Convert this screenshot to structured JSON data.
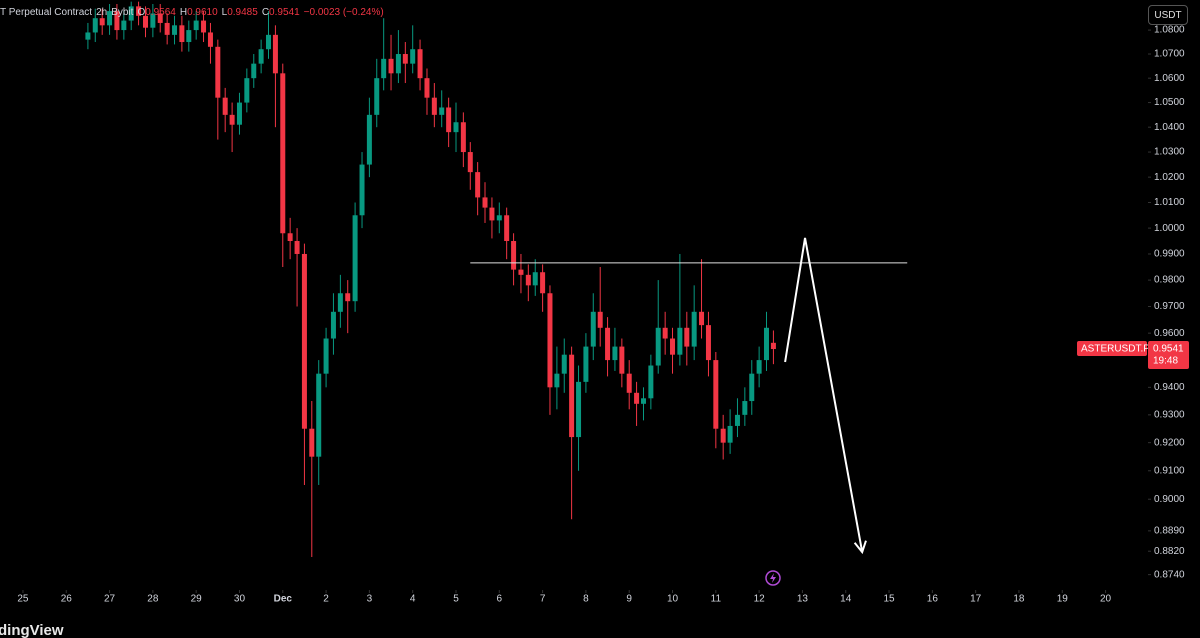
{
  "chart_data": {
    "type": "candlestick",
    "header": {
      "description": "T Perpetual Contract",
      "interval": "2h",
      "exchange": "Bybit",
      "open_label": "O",
      "open": "0.9564",
      "high_label": "H",
      "high": "0.9610",
      "low_label": "L",
      "low": "0.9485",
      "close_label": "C",
      "close": "0.9541",
      "change": "−0.0023 (−0.24%)"
    },
    "currency": "USDT",
    "watermark": "dingView",
    "log_scale": true,
    "up_color": "#089981",
    "down_color": "#f23645",
    "xlim": [
      -0.53,
      25.98
    ],
    "ylim": [
      0.8688,
      1.0927
    ],
    "xticks": [
      {
        "value": 0,
        "label": "25"
      },
      {
        "value": 1,
        "label": "26"
      },
      {
        "value": 2,
        "label": "27"
      },
      {
        "value": 3,
        "label": "28"
      },
      {
        "value": 4,
        "label": "29"
      },
      {
        "value": 5,
        "label": "30"
      },
      {
        "value": 6,
        "label": "Dec"
      },
      {
        "value": 7,
        "label": "2"
      },
      {
        "value": 8,
        "label": "3"
      },
      {
        "value": 9,
        "label": "4"
      },
      {
        "value": 10,
        "label": "5"
      },
      {
        "value": 11,
        "label": "6"
      },
      {
        "value": 12,
        "label": "7"
      },
      {
        "value": 13,
        "label": "8"
      },
      {
        "value": 14,
        "label": "9"
      },
      {
        "value": 15,
        "label": "10"
      },
      {
        "value": 16,
        "label": "11"
      },
      {
        "value": 17,
        "label": "12"
      },
      {
        "value": 18,
        "label": "13"
      },
      {
        "value": 19,
        "label": "14"
      },
      {
        "value": 20,
        "label": "15"
      },
      {
        "value": 21,
        "label": "16"
      },
      {
        "value": 22,
        "label": "17"
      },
      {
        "value": 23,
        "label": "18"
      },
      {
        "value": 24,
        "label": "19"
      },
      {
        "value": 25,
        "label": "20"
      }
    ],
    "yticks": [
      {
        "value": 1.08,
        "label": "1.0800"
      },
      {
        "value": 1.07,
        "label": "1.0700"
      },
      {
        "value": 1.06,
        "label": "1.0600"
      },
      {
        "value": 1.05,
        "label": "1.0500"
      },
      {
        "value": 1.04,
        "label": "1.0400"
      },
      {
        "value": 1.03,
        "label": "1.0300"
      },
      {
        "value": 1.02,
        "label": "1.0200"
      },
      {
        "value": 1.01,
        "label": "1.0100"
      },
      {
        "value": 1,
        "label": "1.0000"
      },
      {
        "value": 0.99,
        "label": "0.9900"
      },
      {
        "value": 0.98,
        "label": "0.9800"
      },
      {
        "value": 0.97,
        "label": "0.9700"
      },
      {
        "value": 0.96,
        "label": "0.9600"
      },
      {
        "value": 0.94,
        "label": "0.9400"
      },
      {
        "value": 0.93,
        "label": "0.9300"
      },
      {
        "value": 0.92,
        "label": "0.9200"
      },
      {
        "value": 0.91,
        "label": "0.9100"
      },
      {
        "value": 0.9,
        "label": "0.9000"
      },
      {
        "value": 0.889,
        "label": "0.8890"
      },
      {
        "value": 0.882,
        "label": "0.8820"
      },
      {
        "value": 0.874,
        "label": "0.8740"
      }
    ],
    "x": [
      1.5,
      1.67,
      1.83,
      2,
      2.17,
      2.33,
      2.5,
      2.67,
      2.83,
      3,
      3.17,
      3.33,
      3.5,
      3.67,
      3.83,
      4,
      4.17,
      4.33,
      4.5,
      4.67,
      4.83,
      5,
      5.17,
      5.33,
      5.5,
      5.67,
      5.83,
      6,
      6.17,
      6.33,
      6.5,
      6.67,
      6.83,
      7,
      7.17,
      7.33,
      7.5,
      7.67,
      7.83,
      8,
      8.17,
      8.33,
      8.5,
      8.67,
      8.83,
      9,
      9.17,
      9.33,
      9.5,
      9.67,
      9.83,
      10,
      10.17,
      10.33,
      10.5,
      10.67,
      10.83,
      11,
      11.17,
      11.33,
      11.5,
      11.67,
      11.83,
      12,
      12.17,
      12.33,
      12.5,
      12.67,
      12.83,
      13,
      13.17,
      13.33,
      13.5,
      13.67,
      13.83,
      14,
      14.17,
      14.33,
      14.5,
      14.67,
      14.83,
      15,
      15.17,
      15.33,
      15.5,
      15.67,
      15.83,
      16,
      16.17,
      16.33,
      16.5,
      16.67,
      16.83,
      17,
      17.17,
      17.33
    ],
    "open": [
      1.076,
      1.079,
      1.085,
      1.082,
      1.088,
      1.08,
      1.084,
      1.09,
      1.086,
      1.081,
      1.087,
      1.083,
      1.078,
      1.082,
      1.075,
      1.08,
      1.084,
      1.079,
      1.073,
      1.052,
      1.045,
      1.041,
      1.05,
      1.06,
      1.066,
      1.072,
      1.078,
      1.062,
      0.998,
      0.995,
      0.99,
      0.925,
      0.915,
      0.945,
      0.958,
      0.968,
      0.975,
      0.972,
      1.005,
      1.025,
      1.045,
      1.06,
      1.068,
      1.062,
      1.07,
      1.066,
      1.072,
      1.06,
      1.052,
      1.045,
      1.048,
      1.038,
      1.042,
      1.03,
      1.022,
      1.012,
      1.008,
      1.003,
      1.005,
      0.995,
      0.984,
      0.982,
      0.978,
      0.983,
      0.975,
      0.94,
      0.945,
      0.952,
      0.922,
      0.942,
      0.955,
      0.968,
      0.962,
      0.95,
      0.955,
      0.945,
      0.938,
      0.934,
      0.936,
      0.948,
      0.962,
      0.958,
      0.952,
      0.962,
      0.955,
      0.968,
      0.963,
      0.95,
      0.925,
      0.92,
      0.926,
      0.93,
      0.935,
      0.945,
      0.95,
      0.9564
    ],
    "high": [
      1.083,
      1.089,
      1.089,
      1.091,
      1.091,
      1.088,
      1.092,
      1.092,
      1.09,
      1.091,
      1.091,
      1.087,
      1.086,
      1.086,
      1.084,
      1.088,
      1.088,
      1.083,
      1.076,
      1.056,
      1.05,
      1.054,
      1.064,
      1.07,
      1.076,
      1.088,
      1.082,
      1.066,
      1.004,
      1.0,
      0.994,
      0.935,
      0.95,
      0.962,
      0.975,
      0.982,
      0.98,
      1.01,
      1.03,
      1.052,
      1.068,
      1.085,
      1.078,
      1.08,
      1.075,
      1.082,
      1.076,
      1.064,
      1.058,
      1.055,
      1.052,
      1.05,
      1.046,
      1.034,
      1.026,
      1.018,
      1.012,
      1.01,
      1.008,
      0.998,
      0.99,
      0.986,
      0.988,
      0.986,
      0.978,
      0.955,
      0.958,
      0.955,
      0.948,
      0.96,
      0.975,
      0.985,
      0.966,
      0.962,
      0.958,
      0.95,
      0.942,
      0.94,
      0.952,
      0.98,
      0.968,
      0.962,
      0.99,
      0.968,
      0.978,
      0.988,
      0.968,
      0.953,
      0.93,
      0.932,
      0.936,
      0.94,
      0.95,
      0.955,
      0.968,
      0.961
    ],
    "low": [
      1.072,
      1.075,
      1.078,
      1.078,
      1.076,
      1.076,
      1.08,
      1.082,
      1.077,
      1.077,
      1.079,
      1.074,
      1.074,
      1.071,
      1.071,
      1.076,
      1.075,
      1.066,
      1.035,
      1.038,
      1.03,
      1.037,
      1.046,
      1.056,
      1.062,
      1.068,
      1.04,
      0.985,
      0.988,
      0.97,
      0.905,
      0.88,
      0.905,
      0.94,
      0.952,
      0.962,
      0.96,
      0.968,
      1.0,
      1.02,
      1.04,
      1.055,
      1.055,
      1.058,
      1.058,
      1.062,
      1.055,
      1.045,
      1.04,
      1.04,
      1.032,
      1.03,
      1.024,
      1.015,
      1.005,
      1.002,
      0.996,
      0.998,
      0.988,
      0.978,
      0.975,
      0.972,
      0.974,
      0.968,
      0.93,
      0.932,
      0.938,
      0.893,
      0.91,
      0.938,
      0.95,
      0.955,
      0.944,
      0.946,
      0.94,
      0.932,
      0.926,
      0.928,
      0.932,
      0.945,
      0.952,
      0.945,
      0.948,
      0.948,
      0.95,
      0.958,
      0.944,
      0.918,
      0.914,
      0.916,
      0.922,
      0.926,
      0.93,
      0.94,
      0.946,
      0.9485
    ],
    "close": [
      1.079,
      1.085,
      1.082,
      1.088,
      1.08,
      1.084,
      1.09,
      1.086,
      1.081,
      1.087,
      1.083,
      1.078,
      1.082,
      1.075,
      1.08,
      1.084,
      1.079,
      1.073,
      1.052,
      1.045,
      1.041,
      1.05,
      1.06,
      1.066,
      1.072,
      1.078,
      1.062,
      0.998,
      0.995,
      0.99,
      0.925,
      0.915,
      0.945,
      0.958,
      0.968,
      0.975,
      0.972,
      1.005,
      1.025,
      1.045,
      1.06,
      1.068,
      1.062,
      1.07,
      1.066,
      1.072,
      1.06,
      1.052,
      1.045,
      1.048,
      1.038,
      1.042,
      1.03,
      1.022,
      1.012,
      1.008,
      1.003,
      1.005,
      0.995,
      0.984,
      0.982,
      0.978,
      0.983,
      0.975,
      0.94,
      0.945,
      0.952,
      0.922,
      0.942,
      0.955,
      0.968,
      0.962,
      0.95,
      0.955,
      0.945,
      0.938,
      0.934,
      0.936,
      0.948,
      0.962,
      0.958,
      0.952,
      0.962,
      0.955,
      0.968,
      0.963,
      0.95,
      0.925,
      0.92,
      0.926,
      0.93,
      0.935,
      0.945,
      0.95,
      0.962,
      0.9541
    ],
    "level_line": {
      "value": 0.9866,
      "x": [
        10.33,
        20.42
      ]
    },
    "arrow": {
      "x": [
        17.6,
        18.06,
        19.38
      ],
      "y": [
        0.9493,
        0.9962,
        0.8817
      ]
    },
    "price_label": {
      "symbol": "ASTERUSDT.P",
      "price": "0.9541",
      "countdown": "19:48",
      "value": 0.9541
    }
  }
}
